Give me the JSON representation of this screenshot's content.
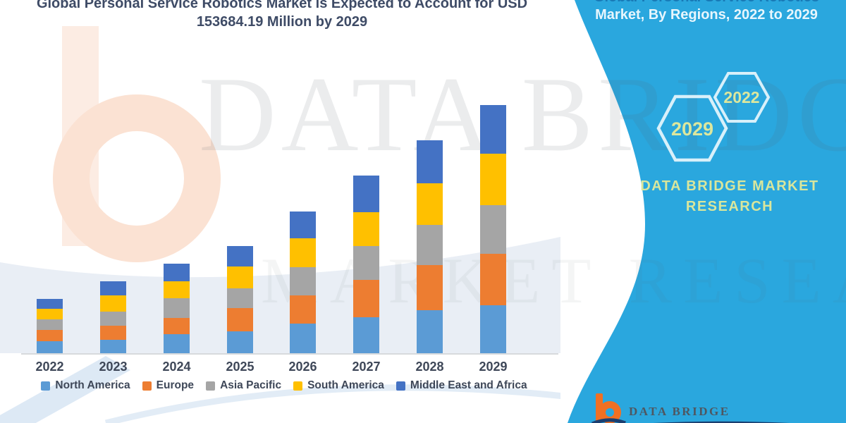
{
  "header": {
    "title_line1": "Global Personal Service Robotics Market is Expected to Account for USD",
    "title_line2": "153684.19 Million by 2029"
  },
  "panel": {
    "accent_color": "#2AA7DE",
    "title_line1": "Global Personal Service Robotics",
    "title_line2": "Market, By Regions, 2022 to 2029",
    "hexagon_badges": [
      {
        "label": "2029"
      },
      {
        "label": "2022"
      }
    ],
    "brand_line1": "DATA BRIDGE MARKET",
    "brand_line2": "RESEARCH",
    "logo_text": "DATA BRIDGE"
  },
  "watermark": {
    "text1": "DATA BRIDGE",
    "text2": "MARKET RESEARCH"
  },
  "chart_data": {
    "type": "bar",
    "subtype": "stacked-vertical",
    "title": "Global Personal Service Robotics Market is Expected to Account for USD 153684.19 Million by 2029",
    "unit": "USD Million",
    "annotation": "USD 153684.19 Million by 2029",
    "xlabel": "",
    "ylabel": "",
    "value_axis_visible": false,
    "grid": false,
    "legend_position": "bottom",
    "categories": [
      "2022",
      "2023",
      "2024",
      "2025",
      "2026",
      "2027",
      "2028",
      "2029"
    ],
    "series": [
      {
        "name": "North America",
        "color": "#5B9BD5",
        "values": [
          7400,
          8200,
          11700,
          13500,
          18200,
          22100,
          26500,
          29500
        ]
      },
      {
        "name": "Europe",
        "color": "#ED7D31",
        "values": [
          6900,
          8700,
          10000,
          14300,
          17400,
          23400,
          28200,
          32120
        ]
      },
      {
        "name": "Asia Pacific",
        "color": "#A5A5A5",
        "values": [
          6500,
          8700,
          12200,
          12200,
          17800,
          20800,
          24700,
          29950
        ]
      },
      {
        "name": "South America",
        "color": "#FFC000",
        "values": [
          6500,
          10000,
          10400,
          13500,
          17800,
          20800,
          25600,
          31710
        ]
      },
      {
        "name": "Middle East and Africa",
        "color": "#4472C4",
        "values": [
          6100,
          8700,
          10900,
          13000,
          16500,
          22600,
          26500,
          30404.19
        ]
      }
    ],
    "estimated_totals": [
      33400,
      44300,
      55200,
      66500,
      87700,
      109700,
      131500,
      153684.19
    ]
  }
}
